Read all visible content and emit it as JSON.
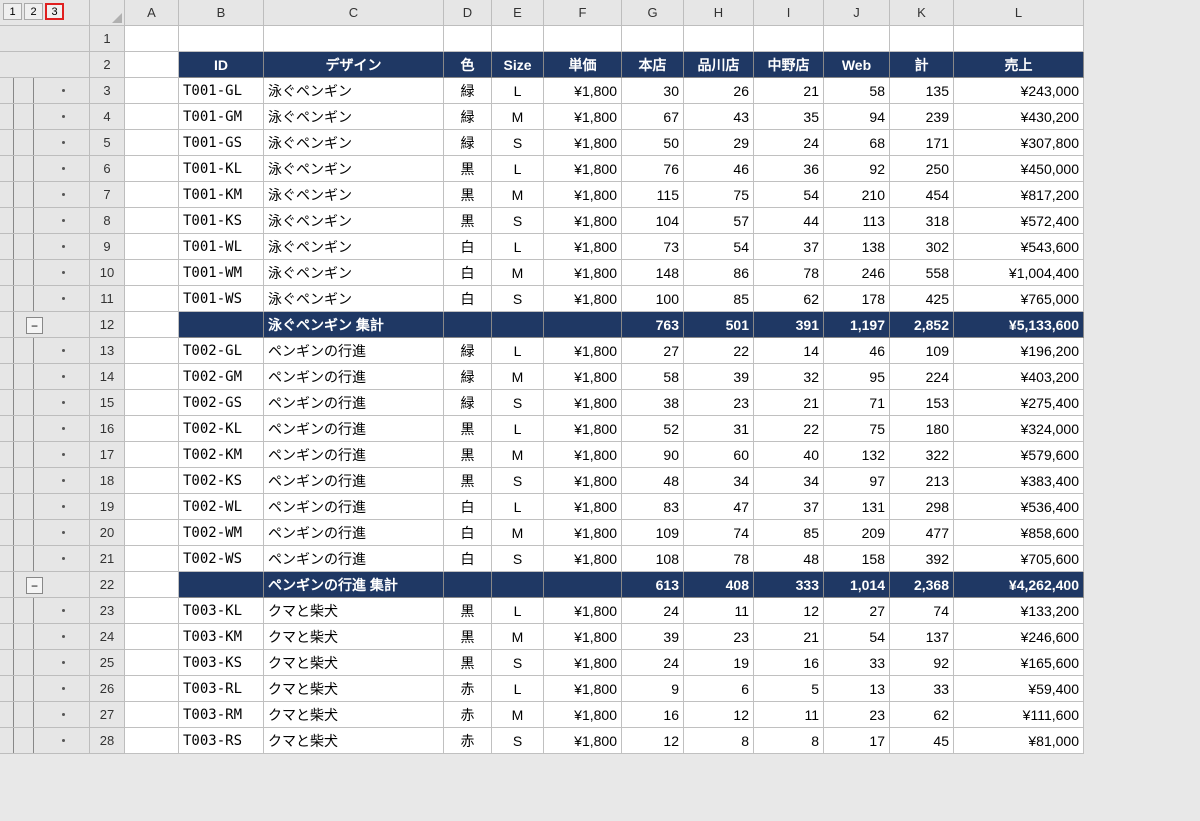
{
  "levels": [
    "1",
    "2",
    "3"
  ],
  "cols": [
    "A",
    "B",
    "C",
    "D",
    "E",
    "F",
    "G",
    "H",
    "I",
    "J",
    "K",
    "L"
  ],
  "headers": {
    "B": "ID",
    "C": "デザイン",
    "D": "色",
    "E": "Size",
    "F": "単価",
    "G": "本店",
    "H": "品川店",
    "I": "中野店",
    "J": "Web",
    "K": "計",
    "L": "売上"
  },
  "rows": [
    {
      "n": "1",
      "type": "blank"
    },
    {
      "n": "2",
      "type": "header"
    },
    {
      "n": "3",
      "type": "data",
      "B": "T001-GL",
      "C": "泳ぐペンギン",
      "D": "緑",
      "E": "L",
      "F": "¥1,800",
      "G": "30",
      "H": "26",
      "I": "21",
      "J": "58",
      "K": "135",
      "L": "¥243,000"
    },
    {
      "n": "4",
      "type": "data",
      "B": "T001-GM",
      "C": "泳ぐペンギン",
      "D": "緑",
      "E": "M",
      "F": "¥1,800",
      "G": "67",
      "H": "43",
      "I": "35",
      "J": "94",
      "K": "239",
      "L": "¥430,200"
    },
    {
      "n": "5",
      "type": "data",
      "B": "T001-GS",
      "C": "泳ぐペンギン",
      "D": "緑",
      "E": "S",
      "F": "¥1,800",
      "G": "50",
      "H": "29",
      "I": "24",
      "J": "68",
      "K": "171",
      "L": "¥307,800"
    },
    {
      "n": "6",
      "type": "data",
      "B": "T001-KL",
      "C": "泳ぐペンギン",
      "D": "黒",
      "E": "L",
      "F": "¥1,800",
      "G": "76",
      "H": "46",
      "I": "36",
      "J": "92",
      "K": "250",
      "L": "¥450,000"
    },
    {
      "n": "7",
      "type": "data",
      "B": "T001-KM",
      "C": "泳ぐペンギン",
      "D": "黒",
      "E": "M",
      "F": "¥1,800",
      "G": "115",
      "H": "75",
      "I": "54",
      "J": "210",
      "K": "454",
      "L": "¥817,200"
    },
    {
      "n": "8",
      "type": "data",
      "B": "T001-KS",
      "C": "泳ぐペンギン",
      "D": "黒",
      "E": "S",
      "F": "¥1,800",
      "G": "104",
      "H": "57",
      "I": "44",
      "J": "113",
      "K": "318",
      "L": "¥572,400"
    },
    {
      "n": "9",
      "type": "data",
      "B": "T001-WL",
      "C": "泳ぐペンギン",
      "D": "白",
      "E": "L",
      "F": "¥1,800",
      "G": "73",
      "H": "54",
      "I": "37",
      "J": "138",
      "K": "302",
      "L": "¥543,600"
    },
    {
      "n": "10",
      "type": "data",
      "B": "T001-WM",
      "C": "泳ぐペンギン",
      "D": "白",
      "E": "M",
      "F": "¥1,800",
      "G": "148",
      "H": "86",
      "I": "78",
      "J": "246",
      "K": "558",
      "L": "¥1,004,400"
    },
    {
      "n": "11",
      "type": "data",
      "B": "T001-WS",
      "C": "泳ぐペンギン",
      "D": "白",
      "E": "S",
      "F": "¥1,800",
      "G": "100",
      "H": "85",
      "I": "62",
      "J": "178",
      "K": "425",
      "L": "¥765,000"
    },
    {
      "n": "12",
      "type": "subtotal",
      "C": "泳ぐペンギン 集計",
      "G": "763",
      "H": "501",
      "I": "391",
      "J": "1,197",
      "K": "2,852",
      "L": "¥5,133,600"
    },
    {
      "n": "13",
      "type": "data",
      "B": "T002-GL",
      "C": "ペンギンの行進",
      "D": "緑",
      "E": "L",
      "F": "¥1,800",
      "G": "27",
      "H": "22",
      "I": "14",
      "J": "46",
      "K": "109",
      "L": "¥196,200"
    },
    {
      "n": "14",
      "type": "data",
      "B": "T002-GM",
      "C": "ペンギンの行進",
      "D": "緑",
      "E": "M",
      "F": "¥1,800",
      "G": "58",
      "H": "39",
      "I": "32",
      "J": "95",
      "K": "224",
      "L": "¥403,200"
    },
    {
      "n": "15",
      "type": "data",
      "B": "T002-GS",
      "C": "ペンギンの行進",
      "D": "緑",
      "E": "S",
      "F": "¥1,800",
      "G": "38",
      "H": "23",
      "I": "21",
      "J": "71",
      "K": "153",
      "L": "¥275,400"
    },
    {
      "n": "16",
      "type": "data",
      "B": "T002-KL",
      "C": "ペンギンの行進",
      "D": "黒",
      "E": "L",
      "F": "¥1,800",
      "G": "52",
      "H": "31",
      "I": "22",
      "J": "75",
      "K": "180",
      "L": "¥324,000"
    },
    {
      "n": "17",
      "type": "data",
      "B": "T002-KM",
      "C": "ペンギンの行進",
      "D": "黒",
      "E": "M",
      "F": "¥1,800",
      "G": "90",
      "H": "60",
      "I": "40",
      "J": "132",
      "K": "322",
      "L": "¥579,600"
    },
    {
      "n": "18",
      "type": "data",
      "B": "T002-KS",
      "C": "ペンギンの行進",
      "D": "黒",
      "E": "S",
      "F": "¥1,800",
      "G": "48",
      "H": "34",
      "I": "34",
      "J": "97",
      "K": "213",
      "L": "¥383,400"
    },
    {
      "n": "19",
      "type": "data",
      "B": "T002-WL",
      "C": "ペンギンの行進",
      "D": "白",
      "E": "L",
      "F": "¥1,800",
      "G": "83",
      "H": "47",
      "I": "37",
      "J": "131",
      "K": "298",
      "L": "¥536,400"
    },
    {
      "n": "20",
      "type": "data",
      "B": "T002-WM",
      "C": "ペンギンの行進",
      "D": "白",
      "E": "M",
      "F": "¥1,800",
      "G": "109",
      "H": "74",
      "I": "85",
      "J": "209",
      "K": "477",
      "L": "¥858,600"
    },
    {
      "n": "21",
      "type": "data",
      "B": "T002-WS",
      "C": "ペンギンの行進",
      "D": "白",
      "E": "S",
      "F": "¥1,800",
      "G": "108",
      "H": "78",
      "I": "48",
      "J": "158",
      "K": "392",
      "L": "¥705,600"
    },
    {
      "n": "22",
      "type": "subtotal",
      "C": "ペンギンの行進 集計",
      "G": "613",
      "H": "408",
      "I": "333",
      "J": "1,014",
      "K": "2,368",
      "L": "¥4,262,400"
    },
    {
      "n": "23",
      "type": "data",
      "B": "T003-KL",
      "C": "クマと柴犬",
      "D": "黒",
      "E": "L",
      "F": "¥1,800",
      "G": "24",
      "H": "11",
      "I": "12",
      "J": "27",
      "K": "74",
      "L": "¥133,200"
    },
    {
      "n": "24",
      "type": "data",
      "B": "T003-KM",
      "C": "クマと柴犬",
      "D": "黒",
      "E": "M",
      "F": "¥1,800",
      "G": "39",
      "H": "23",
      "I": "21",
      "J": "54",
      "K": "137",
      "L": "¥246,600"
    },
    {
      "n": "25",
      "type": "data",
      "B": "T003-KS",
      "C": "クマと柴犬",
      "D": "黒",
      "E": "S",
      "F": "¥1,800",
      "G": "24",
      "H": "19",
      "I": "16",
      "J": "33",
      "K": "92",
      "L": "¥165,600"
    },
    {
      "n": "26",
      "type": "data",
      "B": "T003-RL",
      "C": "クマと柴犬",
      "D": "赤",
      "E": "L",
      "F": "¥1,800",
      "G": "9",
      "H": "6",
      "I": "5",
      "J": "13",
      "K": "33",
      "L": "¥59,400"
    },
    {
      "n": "27",
      "type": "data",
      "B": "T003-RM",
      "C": "クマと柴犬",
      "D": "赤",
      "E": "M",
      "F": "¥1,800",
      "G": "16",
      "H": "12",
      "I": "11",
      "J": "23",
      "K": "62",
      "L": "¥111,600"
    },
    {
      "n": "28",
      "type": "data",
      "B": "T003-RS",
      "C": "クマと柴犬",
      "D": "赤",
      "E": "S",
      "F": "¥1,800",
      "G": "12",
      "H": "8",
      "I": "8",
      "J": "17",
      "K": "45",
      "L": "¥81,000"
    }
  ],
  "collapseLabel": "−",
  "style": {
    "header_bg": "#1f3864",
    "header_fg": "#ffffff",
    "grid_bg": "#ffffff",
    "chrome_bg": "#e6e6e6",
    "highlight": "#e02020"
  }
}
